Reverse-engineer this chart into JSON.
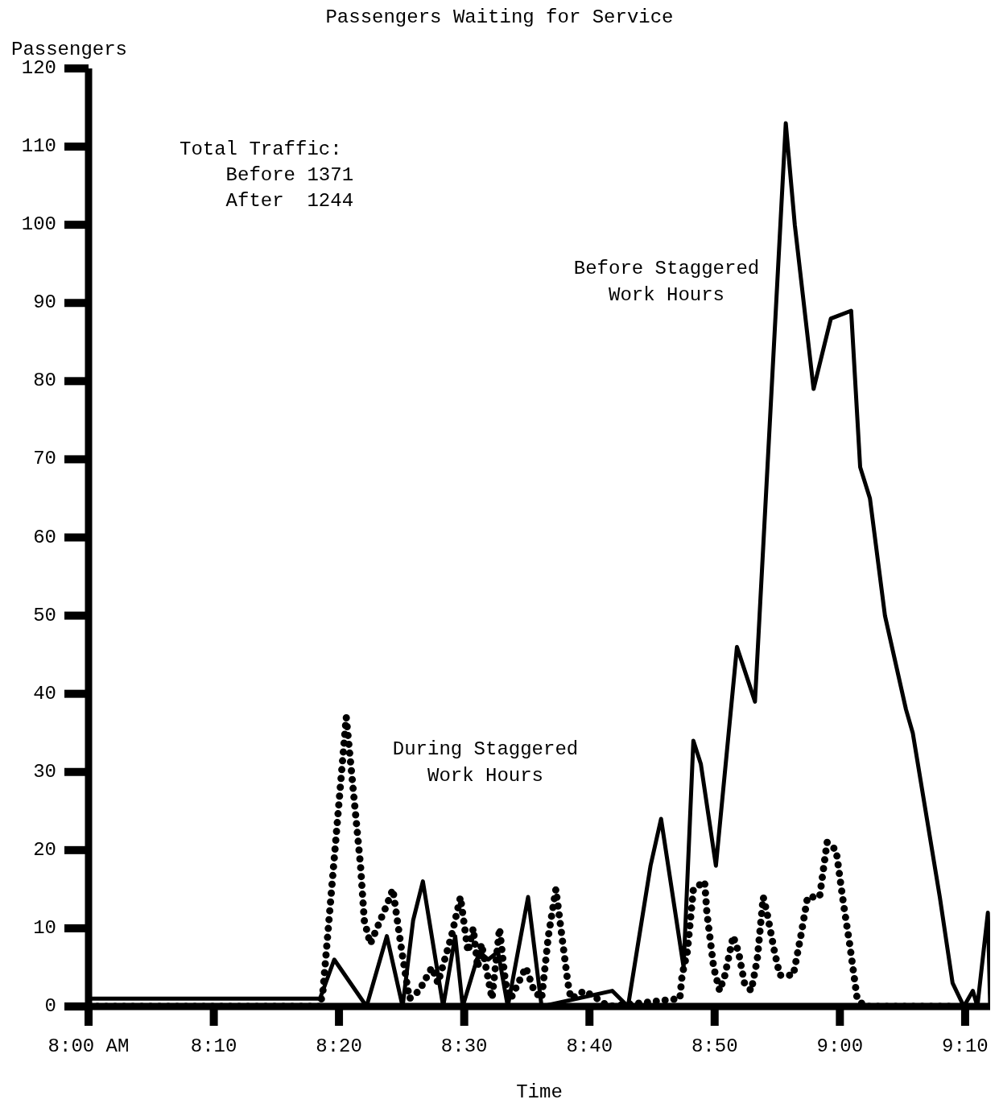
{
  "chart_data": {
    "type": "line",
    "title": "Passengers Waiting for Service",
    "xlabel": "Time",
    "ylabel": "Passengers",
    "annotations": [
      "Total Traffic:\n    Before 1371\n    After  1244"
    ],
    "xlim": [
      8,
      9.2
    ],
    "xticks": [
      {
        "value": 8,
        "label": "8:00 AM"
      },
      {
        "value": 8.1667,
        "label": "8:10"
      },
      {
        "value": 8.3333,
        "label": "8:20"
      },
      {
        "value": 8.5,
        "label": "8:30"
      },
      {
        "value": 8.6667,
        "label": "8:40"
      },
      {
        "value": 8.8333,
        "label": "8:50"
      },
      {
        "value": 9,
        "label": "9:00"
      },
      {
        "value": 9.1667,
        "label": "9:10"
      }
    ],
    "ylim": [
      0,
      120
    ],
    "yticks": [
      0,
      10,
      20,
      30,
      40,
      50,
      60,
      70,
      80,
      90,
      100,
      110,
      120
    ],
    "marker": "none",
    "series": [
      {
        "name": "Before Staggered Work Hours",
        "color": "#000000",
        "line_style": "solid",
        "x": [
          8,
          8.308,
          8.327,
          8.37,
          8.397,
          8.418,
          8.432,
          8.445,
          8.472,
          8.488,
          8.498,
          8.52,
          8.532,
          8.545,
          8.558,
          8.585,
          8.603,
          8.697,
          8.718,
          8.748,
          8.762,
          8.792,
          8.805,
          8.815,
          8.835,
          8.863,
          8.887,
          8.928,
          8.94,
          8.965,
          8.988,
          9.015,
          9.027,
          9.04,
          9.06,
          9.088,
          9.097,
          9.133,
          9.15,
          9.165,
          9.177,
          9.183,
          9.197,
          9.2
        ],
        "values": [
          1,
          1,
          6,
          0,
          9,
          0,
          11,
          16,
          0,
          9,
          0,
          7,
          6,
          7,
          0,
          14,
          0,
          2,
          0,
          18,
          24,
          5,
          34,
          31,
          18,
          46,
          39,
          113,
          100,
          79,
          88,
          89,
          69,
          65,
          50,
          38,
          35,
          14,
          3,
          0,
          2,
          0,
          12,
          0
        ]
      },
      {
        "name": "During Staggered Work Hours",
        "color": "#000000",
        "line_style": "dotted",
        "x": [
          8,
          8.308,
          8.312,
          8.343,
          8.362,
          8.367,
          8.375,
          8.397,
          8.405,
          8.417,
          8.427,
          8.44,
          8.457,
          8.465,
          8.483,
          8.495,
          8.505,
          8.512,
          8.518,
          8.523,
          8.537,
          8.547,
          8.555,
          8.562,
          8.582,
          8.593,
          8.603,
          8.612,
          8.622,
          8.638,
          8.642,
          8.66,
          8.677,
          8.692,
          8.787,
          8.79,
          8.797,
          8.805,
          8.82,
          8.823,
          8.832,
          8.84,
          8.847,
          8.858,
          8.865,
          8.873,
          8.882,
          8.89,
          8.898,
          8.903,
          8.913,
          8.92,
          8.938,
          8.948,
          8.957,
          8.973,
          8.983,
          8.995,
          9.005,
          9.013,
          9.023,
          9.033,
          9.147
        ],
        "values": [
          0,
          0,
          2,
          37,
          18,
          11,
          8,
          13,
          15,
          7,
          1,
          2,
          5,
          3,
          9,
          14,
          7,
          10,
          5,
          8,
          1,
          10,
          3,
          1,
          5,
          2,
          1,
          9,
          15,
          3,
          1,
          2,
          1,
          0,
          1,
          4,
          7,
          15,
          16,
          12,
          5,
          2,
          4,
          9,
          7,
          3,
          2,
          6,
          14,
          12,
          7,
          4,
          4,
          9,
          14,
          14,
          21,
          20,
          13,
          8,
          1,
          0,
          0
        ]
      }
    ]
  }
}
